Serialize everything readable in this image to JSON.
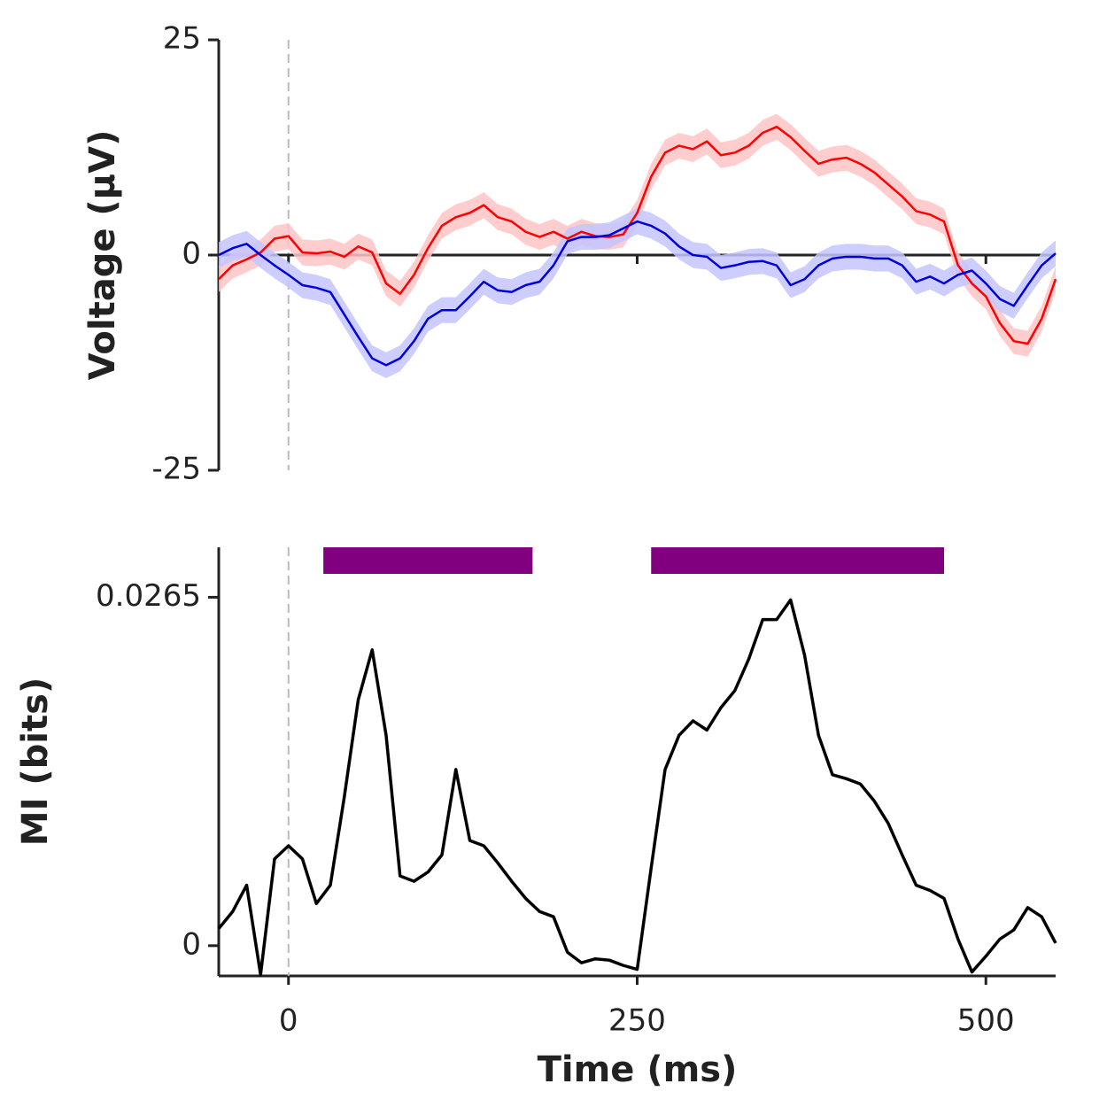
{
  "chart_data": [
    {
      "type": "line",
      "ylabel": "Voltage (μV)",
      "x": [
        -50,
        -40,
        -30,
        -20,
        -10,
        0,
        10,
        20,
        30,
        40,
        50,
        60,
        70,
        80,
        90,
        100,
        110,
        120,
        130,
        140,
        150,
        160,
        170,
        180,
        190,
        200,
        210,
        220,
        230,
        240,
        250,
        260,
        270,
        280,
        290,
        300,
        310,
        320,
        330,
        340,
        350,
        360,
        370,
        380,
        390,
        400,
        410,
        420,
        430,
        440,
        450,
        460,
        470,
        480,
        490,
        500,
        510,
        520,
        530,
        540,
        550
      ],
      "series": [
        {
          "color": "#ff0000",
          "band_color": "#ffc4c4",
          "error": 1.5,
          "values": [
            -2.8,
            -1.2,
            -0.5,
            0.3,
            1.9,
            2.2,
            0.3,
            0.2,
            0.4,
            -0.2,
            1.0,
            0.3,
            -3.3,
            -4.5,
            -2.3,
            0.8,
            3.4,
            4.4,
            4.9,
            5.8,
            4.4,
            3.9,
            2.7,
            2.1,
            2.7,
            1.9,
            2.7,
            2.2,
            2.1,
            2.4,
            4.9,
            9.1,
            11.9,
            12.7,
            12.3,
            13.2,
            11.6,
            11.9,
            12.7,
            14.2,
            14.9,
            13.7,
            12.1,
            10.6,
            11.1,
            11.3,
            10.6,
            9.6,
            8.2,
            6.8,
            5.1,
            4.7,
            3.9,
            -1.2,
            -3.3,
            -4.8,
            -7.9,
            -10.0,
            -10.3,
            -7.4,
            -2.8
          ]
        },
        {
          "color": "#0000dd",
          "band_color": "#c4c4ff",
          "error": 1.5,
          "values": [
            0,
            0.8,
            1.3,
            0,
            -1.2,
            -2.3,
            -3.5,
            -3.8,
            -4.3,
            -6.9,
            -9.5,
            -12.0,
            -12.8,
            -12.0,
            -10.0,
            -7.4,
            -6.4,
            -6.4,
            -4.8,
            -3.1,
            -4.1,
            -4.3,
            -3.5,
            -3.1,
            -1.2,
            1.6,
            2.1,
            2.1,
            2.3,
            3.1,
            3.9,
            3.4,
            2.5,
            1.0,
            0,
            -0.2,
            -1.5,
            -1.2,
            -0.8,
            -0.7,
            -1.2,
            -3.5,
            -2.8,
            -1.2,
            -0.4,
            -0.2,
            -0.2,
            -0.4,
            -0.4,
            -1.2,
            -3.1,
            -2.5,
            -3.3,
            -2.3,
            -1.8,
            -3.3,
            -5.1,
            -5.9,
            -3.5,
            -1.2,
            0.2
          ]
        }
      ],
      "xlim": [
        -50,
        550
      ],
      "ylim": [
        -25,
        25
      ],
      "xticks": [
        0,
        250,
        500
      ],
      "xticklabels": false,
      "yticks": [
        25,
        0,
        -25
      ],
      "hline": 0,
      "vline": 0
    },
    {
      "type": "line",
      "ylabel": "MI (bits)",
      "xlabel": "Time (ms)",
      "x": [
        -50,
        -40,
        -30,
        -20,
        -10,
        0,
        10,
        20,
        30,
        40,
        50,
        60,
        70,
        80,
        90,
        100,
        110,
        120,
        130,
        140,
        150,
        160,
        170,
        180,
        190,
        200,
        210,
        220,
        230,
        240,
        250,
        260,
        270,
        280,
        290,
        300,
        310,
        320,
        330,
        340,
        350,
        360,
        370,
        380,
        390,
        400,
        410,
        420,
        430,
        440,
        450,
        460,
        470,
        480,
        490,
        500,
        510,
        520,
        530,
        540,
        550
      ],
      "series": [
        {
          "color": "#000000",
          "values": [
            0.0013,
            0.0026,
            0.0046,
            -0.0022,
            0.0066,
            0.0076,
            0.0066,
            0.0032,
            0.0046,
            0.0113,
            0.0187,
            0.0225,
            0.016,
            0.0053,
            0.0049,
            0.0056,
            0.0069,
            0.0134,
            0.008,
            0.0076,
            0.0063,
            0.0049,
            0.0036,
            0.0026,
            0.0022,
            -0.0005,
            -0.0013,
            -0.001,
            -0.0011,
            -0.0015,
            -0.0018,
            0.0059,
            0.0134,
            0.016,
            0.0171,
            0.0164,
            0.0181,
            0.0194,
            0.0218,
            0.0248,
            0.0248,
            0.0263,
            0.0221,
            0.016,
            0.013,
            0.0127,
            0.0123,
            0.011,
            0.0093,
            0.0069,
            0.0046,
            0.0042,
            0.0036,
            0.0005,
            -0.002,
            -0.0008,
            0.0005,
            0.0012,
            0.0029,
            0.0022,
            0.0002
          ]
        }
      ],
      "intervals": [
        [
          25,
          175
        ],
        [
          260,
          470
        ]
      ],
      "interval_color": "#800080",
      "xlim": [
        -50,
        550
      ],
      "ylim": [
        -0.0023,
        0.0303
      ],
      "xticks": [
        0,
        250,
        500
      ],
      "xticklabels": true,
      "yticks": [
        0,
        0.0265
      ],
      "vline": 0
    }
  ]
}
